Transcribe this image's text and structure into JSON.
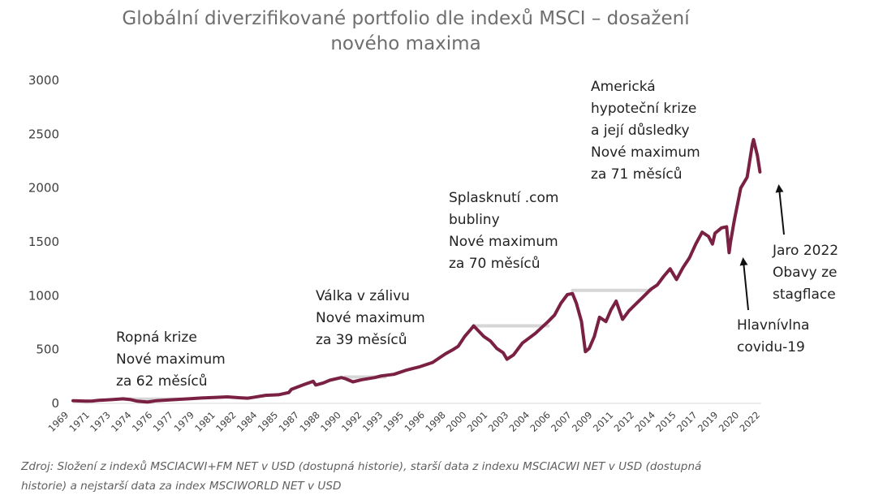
{
  "title": [
    "Globální diverzifikované portfolio dle indexů MSCI – dosažení",
    "nového maxima"
  ],
  "colors": {
    "series": "#7a2042",
    "recovery": "#d6d6d6",
    "axis": "#d9d9d9",
    "text": "#404040"
  },
  "source_lines": [
    "Zdroj: Složení z indexů MSCIACWI+FM NET v USD (dostupná historie), starší data z indexu MSCIACWI NET v USD (dostupná",
    "historie) a nejstarší data za index MSCIWORLD NET v USD"
  ],
  "annotations": {
    "ropna": [
      "Ropná krize",
      "Nové maximum",
      "za 62 měsíců"
    ],
    "valka": [
      "Válka v zálivu",
      "Nové maximum",
      "za 39 měsíců"
    ],
    "com": [
      "Splasknutí .com",
      "bubliny",
      "Nové maximum",
      "za 70 měsíců"
    ],
    "hypo": [
      "Americká",
      "hypoteční krize",
      "a její důsledky",
      "Nové maximum",
      "za 71 měsíců"
    ],
    "covid": [
      "Hlavnívlna",
      "covidu-19"
    ],
    "jaro": [
      "Jaro 2022",
      "Obavy ze",
      "stagflace"
    ]
  },
  "chart_data": {
    "type": "line",
    "title": "Globální diverzifikované portfolio dle indexů MSCI – dosažení nového maxima",
    "xlabel": "",
    "ylabel": "",
    "ylim": [
      0,
      3000
    ],
    "yticks": [
      0,
      500,
      1000,
      1500,
      2000,
      2500,
      3000
    ],
    "xlim": [
      1969.0,
      2022.6
    ],
    "xtick_labels": [
      "1969",
      "1971",
      "1973",
      "1974",
      "1976",
      "1977",
      "1979",
      "1981",
      "1982",
      "1984",
      "1985",
      "1987",
      "1988",
      "1990",
      "1992",
      "1993",
      "1995",
      "1996",
      "1998",
      "2000",
      "2001",
      "2003",
      "2004",
      "2006",
      "2007",
      "2009",
      "2011",
      "2012",
      "2014",
      "2015",
      "2017",
      "2019",
      "2020",
      "2022"
    ],
    "series": [
      {
        "values_x": [
          1969.0,
          1970.0,
          1970.5,
          1971.0,
          1972.0,
          1972.9,
          1973.5,
          1974.0,
          1974.8,
          1975.5,
          1976.5,
          1977.3,
          1978.0,
          1979.0,
          1980.0,
          1981.0,
          1982.0,
          1982.6,
          1983.0,
          1984.0,
          1985.0,
          1985.8,
          1986.0,
          1987.0,
          1987.7,
          1987.9,
          1988.5,
          1989.0,
          1989.9,
          1990.2,
          1990.8,
          1991.5,
          1992.5,
          1993.0,
          1994.0,
          1995.0,
          1996.0,
          1997.0,
          1998.0,
          1998.6,
          1999.0,
          1999.5,
          2000.0,
          2000.2,
          2001.0,
          2001.5,
          2002.0,
          2002.5,
          2002.8,
          2003.3,
          2004.0,
          2005.0,
          2006.0,
          2006.5,
          2007.0,
          2007.5,
          2007.9,
          2008.2,
          2008.6,
          2008.9,
          2009.2,
          2009.6,
          2010.0,
          2010.5,
          2010.9,
          2011.3,
          2011.8,
          2012.3,
          2012.9,
          2013.5,
          2014.0,
          2014.5,
          2015.0,
          2015.5,
          2016.0,
          2016.5,
          2017.0,
          2017.5,
          2018.0,
          2018.5,
          2018.8,
          2019.0,
          2019.5,
          2019.9,
          2020.1,
          2020.2,
          2020.5,
          2021.0,
          2021.5,
          2021.9,
          2022.0,
          2022.3,
          2022.5
        ],
        "values_y": [
          25,
          20,
          22,
          28,
          35,
          42,
          35,
          20,
          12,
          25,
          32,
          38,
          42,
          50,
          55,
          60,
          52,
          48,
          55,
          75,
          80,
          100,
          130,
          175,
          205,
          170,
          190,
          215,
          240,
          230,
          200,
          220,
          240,
          255,
          270,
          310,
          340,
          380,
          460,
          500,
          530,
          620,
          690,
          720,
          620,
          580,
          510,
          470,
          410,
          450,
          560,
          650,
          760,
          820,
          930,
          1010,
          1020,
          930,
          760,
          480,
          510,
          620,
          800,
          760,
          870,
          950,
          780,
          860,
          930,
          1000,
          1060,
          1100,
          1180,
          1250,
          1150,
          1260,
          1350,
          1480,
          1590,
          1550,
          1480,
          1580,
          1630,
          1640,
          1400,
          1490,
          1700,
          2000,
          2100,
          2400,
          2450,
          2300,
          2150
        ]
      }
    ],
    "recovery_lines": [
      {
        "x0": 1973.0,
        "x1": 1977.3,
        "y": 40
      },
      {
        "x0": 1990.2,
        "x1": 1993.3,
        "y": 245
      },
      {
        "x0": 2000.2,
        "x1": 2006.0,
        "y": 720
      },
      {
        "x0": 2007.9,
        "x1": 2014.0,
        "y": 1050
      }
    ],
    "grid": false
  }
}
